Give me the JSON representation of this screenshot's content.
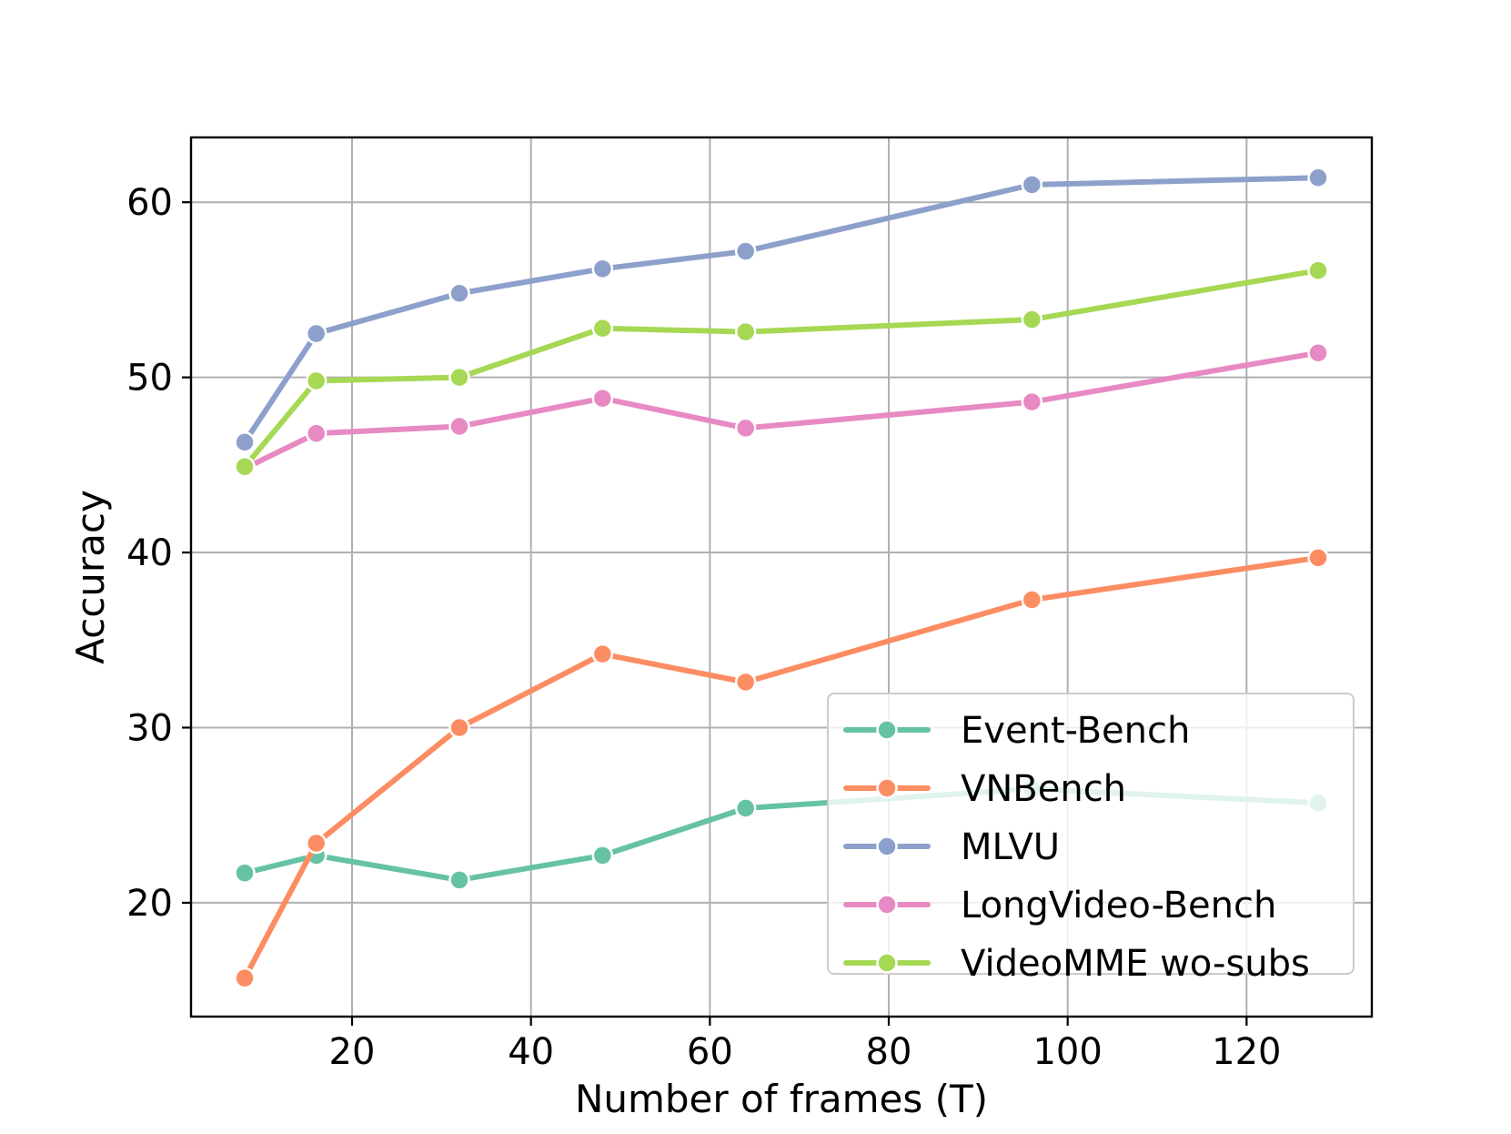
{
  "chart_data": {
    "type": "line",
    "title": "",
    "xlabel": "Number of frames (T)",
    "ylabel": "Accuracy",
    "x": [
      8,
      16,
      32,
      48,
      64,
      96,
      128
    ],
    "xlim": [
      2,
      134
    ],
    "ylim": [
      13.5,
      63.7
    ],
    "xticks": [
      20,
      40,
      60,
      80,
      100,
      120
    ],
    "yticks": [
      20,
      30,
      40,
      50,
      60
    ],
    "grid": true,
    "legend_position": "lower-right",
    "series": [
      {
        "name": "Event-Bench",
        "color": "#66c2a5",
        "values": [
          21.7,
          22.7,
          21.3,
          22.7,
          25.4,
          26.5,
          25.7
        ]
      },
      {
        "name": "VNBench",
        "color": "#fc8d62",
        "values": [
          15.7,
          23.4,
          30.0,
          34.2,
          32.6,
          37.3,
          39.7
        ]
      },
      {
        "name": "MLVU",
        "color": "#8da0cb",
        "values": [
          46.3,
          52.5,
          54.8,
          56.2,
          57.2,
          61.0,
          61.4
        ]
      },
      {
        "name": "LongVideo-Bench",
        "color": "#e78ac3",
        "values": [
          44.8,
          46.8,
          47.2,
          48.8,
          47.1,
          48.6,
          51.4
        ]
      },
      {
        "name": "VideoMME wo-subs",
        "color": "#a6d854",
        "values": [
          44.9,
          49.8,
          50.0,
          52.8,
          52.6,
          53.3,
          56.1
        ]
      }
    ]
  }
}
